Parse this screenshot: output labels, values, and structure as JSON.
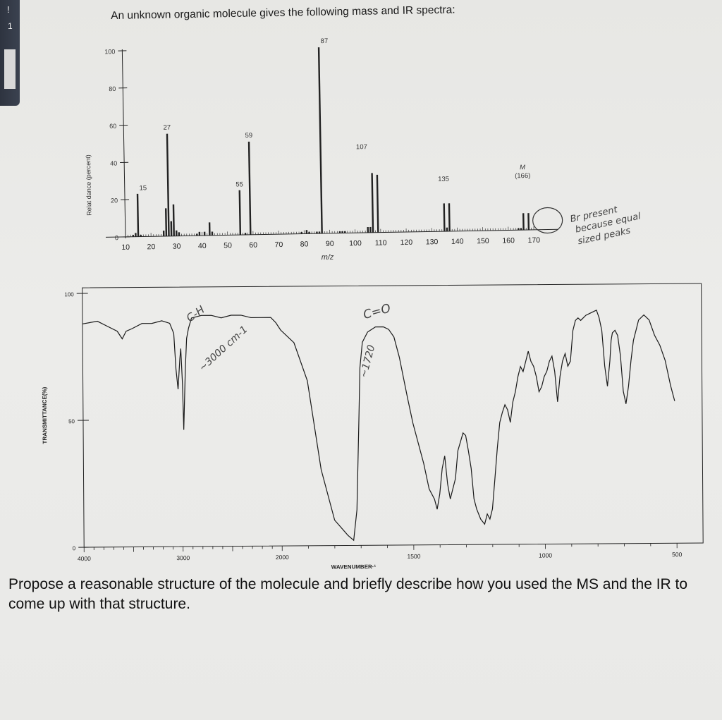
{
  "header": {
    "title": "An unknown organic molecule gives the following mass and IR spectra:"
  },
  "question": "Propose a reasonable structure of the molecule and briefly describe how you used the MS and the IR to come up with that structure.",
  "colors": {
    "ink": "#111111",
    "handwriting": "#444444",
    "paper": "#e9e9e7"
  },
  "chart_data": [
    {
      "type": "bar",
      "xlabel": "m/z",
      "ylabel": "Relat dance (percent)",
      "xlim": [
        9,
        175
      ],
      "ylim": [
        0,
        100
      ],
      "x_ticks": [
        10,
        20,
        30,
        40,
        50,
        60,
        70,
        80,
        90,
        100,
        110,
        120,
        130,
        140,
        150,
        160,
        170
      ],
      "y_ticks": [
        0,
        20,
        40,
        60,
        80,
        100
      ],
      "peaks": [
        {
          "x": 13,
          "y": 1
        },
        {
          "x": 14,
          "y": 2
        },
        {
          "x": 15,
          "y": 23
        },
        {
          "x": 16,
          "y": 1
        },
        {
          "x": 25,
          "y": 3
        },
        {
          "x": 26,
          "y": 15
        },
        {
          "x": 27,
          "y": 55
        },
        {
          "x": 28,
          "y": 8
        },
        {
          "x": 29,
          "y": 17
        },
        {
          "x": 30,
          "y": 3
        },
        {
          "x": 31,
          "y": 2
        },
        {
          "x": 38,
          "y": 1
        },
        {
          "x": 39,
          "y": 2
        },
        {
          "x": 41,
          "y": 2
        },
        {
          "x": 43,
          "y": 7
        },
        {
          "x": 44,
          "y": 2
        },
        {
          "x": 55,
          "y": 24
        },
        {
          "x": 57,
          "y": 1
        },
        {
          "x": 59,
          "y": 50
        },
        {
          "x": 79,
          "y": 1
        },
        {
          "x": 81,
          "y": 2
        },
        {
          "x": 82,
          "y": 1
        },
        {
          "x": 85,
          "y": 1
        },
        {
          "x": 86,
          "y": 1
        },
        {
          "x": 87,
          "y": 100
        },
        {
          "x": 94,
          "y": 1
        },
        {
          "x": 95,
          "y": 1
        },
        {
          "x": 96,
          "y": 1
        },
        {
          "x": 105,
          "y": 3
        },
        {
          "x": 106,
          "y": 3
        },
        {
          "x": 107,
          "y": 32
        },
        {
          "x": 109,
          "y": 31
        },
        {
          "x": 135,
          "y": 15
        },
        {
          "x": 136,
          "y": 2
        },
        {
          "x": 137,
          "y": 15
        },
        {
          "x": 164,
          "y": 1
        },
        {
          "x": 165,
          "y": 1
        },
        {
          "x": 166,
          "y": 9
        },
        {
          "x": 168,
          "y": 9
        }
      ],
      "peak_labels": [
        {
          "x": 15,
          "text": "15"
        },
        {
          "x": 27,
          "text": "27"
        },
        {
          "x": 55,
          "text": "55"
        },
        {
          "x": 59,
          "text": "59"
        },
        {
          "x": 87,
          "text": "87"
        },
        {
          "x": 107,
          "text": "107"
        },
        {
          "x": 135,
          "text": "135"
        },
        {
          "x": 166,
          "text": "M\n(166)"
        }
      ],
      "annotation": "Br present because equal sized peaks"
    },
    {
      "type": "line",
      "xlabel": "WAVENUMBER·¹",
      "ylabel": "TRANSMITTANCE(%)",
      "xlim": [
        4000,
        500
      ],
      "ylim": [
        0,
        100
      ],
      "x_ticks": [
        {
          "value": 4000,
          "label": "4000"
        },
        {
          "value": 3000,
          "label": "3000"
        },
        {
          "value": 2000,
          "label": "2000"
        },
        {
          "value": 1500,
          "label": "1500"
        },
        {
          "value": 1000,
          "label": "1000"
        },
        {
          "value": 500,
          "label": "500"
        }
      ],
      "y_ticks": [
        {
          "value": 0,
          "label": "0"
        },
        {
          "value": 50,
          "label": "50"
        },
        {
          "value": 100,
          "label": "100"
        }
      ],
      "points": [
        [
          4000,
          88
        ],
        [
          3850,
          89
        ],
        [
          3750,
          87
        ],
        [
          3650,
          85
        ],
        [
          3600,
          82
        ],
        [
          3560,
          85
        ],
        [
          3500,
          86
        ],
        [
          3400,
          88
        ],
        [
          3300,
          88
        ],
        [
          3200,
          89
        ],
        [
          3120,
          88
        ],
        [
          3080,
          84
        ],
        [
          3060,
          70
        ],
        [
          3040,
          62
        ],
        [
          3020,
          74
        ],
        [
          3010,
          78
        ],
        [
          2995,
          64
        ],
        [
          2985,
          46
        ],
        [
          2975,
          58
        ],
        [
          2965,
          70
        ],
        [
          2950,
          82
        ],
        [
          2930,
          86
        ],
        [
          2900,
          90
        ],
        [
          2800,
          91
        ],
        [
          2700,
          91
        ],
        [
          2600,
          90
        ],
        [
          2500,
          91
        ],
        [
          2400,
          91
        ],
        [
          2300,
          90
        ],
        [
          2200,
          90
        ],
        [
          2100,
          90
        ],
        [
          2050,
          88
        ],
        [
          2000,
          85
        ],
        [
          1950,
          80
        ],
        [
          1900,
          65
        ],
        [
          1850,
          30
        ],
        [
          1800,
          10
        ],
        [
          1750,
          4
        ],
        [
          1728,
          2
        ],
        [
          1715,
          14
        ],
        [
          1705,
          50
        ],
        [
          1700,
          70
        ],
        [
          1690,
          80
        ],
        [
          1670,
          84
        ],
        [
          1640,
          86
        ],
        [
          1610,
          86
        ],
        [
          1590,
          85
        ],
        [
          1570,
          82
        ],
        [
          1550,
          74
        ],
        [
          1520,
          58
        ],
        [
          1500,
          48
        ],
        [
          1480,
          40
        ],
        [
          1460,
          32
        ],
        [
          1440,
          22
        ],
        [
          1420,
          18
        ],
        [
          1410,
          14
        ],
        [
          1400,
          20
        ],
        [
          1390,
          30
        ],
        [
          1380,
          35
        ],
        [
          1370,
          24
        ],
        [
          1360,
          18
        ],
        [
          1350,
          22
        ],
        [
          1340,
          26
        ],
        [
          1330,
          37
        ],
        [
          1310,
          44
        ],
        [
          1300,
          43
        ],
        [
          1290,
          37
        ],
        [
          1280,
          30
        ],
        [
          1270,
          18
        ],
        [
          1260,
          14
        ],
        [
          1245,
          10
        ],
        [
          1230,
          8
        ],
        [
          1220,
          12
        ],
        [
          1210,
          10
        ],
        [
          1200,
          14
        ],
        [
          1190,
          26
        ],
        [
          1180,
          38
        ],
        [
          1170,
          48
        ],
        [
          1160,
          52
        ],
        [
          1150,
          55
        ],
        [
          1140,
          53
        ],
        [
          1130,
          48
        ],
        [
          1120,
          56
        ],
        [
          1110,
          60
        ],
        [
          1100,
          66
        ],
        [
          1090,
          70
        ],
        [
          1080,
          68
        ],
        [
          1070,
          72
        ],
        [
          1060,
          76
        ],
        [
          1050,
          72
        ],
        [
          1040,
          70
        ],
        [
          1030,
          66
        ],
        [
          1020,
          60
        ],
        [
          1010,
          62
        ],
        [
          1000,
          66
        ],
        [
          990,
          68
        ],
        [
          980,
          72
        ],
        [
          970,
          74
        ],
        [
          960,
          68
        ],
        [
          950,
          56
        ],
        [
          940,
          66
        ],
        [
          930,
          72
        ],
        [
          920,
          75
        ],
        [
          910,
          70
        ],
        [
          900,
          72
        ],
        [
          890,
          84
        ],
        [
          880,
          88
        ],
        [
          870,
          89
        ],
        [
          860,
          88
        ],
        [
          840,
          90
        ],
        [
          820,
          91
        ],
        [
          800,
          92
        ],
        [
          790,
          89
        ],
        [
          780,
          84
        ],
        [
          770,
          70
        ],
        [
          760,
          62
        ],
        [
          750,
          72
        ],
        [
          745,
          80
        ],
        [
          740,
          83
        ],
        [
          730,
          84
        ],
        [
          720,
          82
        ],
        [
          710,
          74
        ],
        [
          700,
          60
        ],
        [
          690,
          55
        ],
        [
          680,
          62
        ],
        [
          670,
          72
        ],
        [
          660,
          80
        ],
        [
          650,
          84
        ],
        [
          640,
          88
        ],
        [
          620,
          90
        ],
        [
          600,
          88
        ],
        [
          580,
          82
        ],
        [
          560,
          78
        ],
        [
          540,
          72
        ],
        [
          520,
          62
        ],
        [
          505,
          56
        ]
      ],
      "annotations": [
        "C-H",
        "~3000 cm-1",
        "C=O",
        "~1720"
      ]
    }
  ]
}
